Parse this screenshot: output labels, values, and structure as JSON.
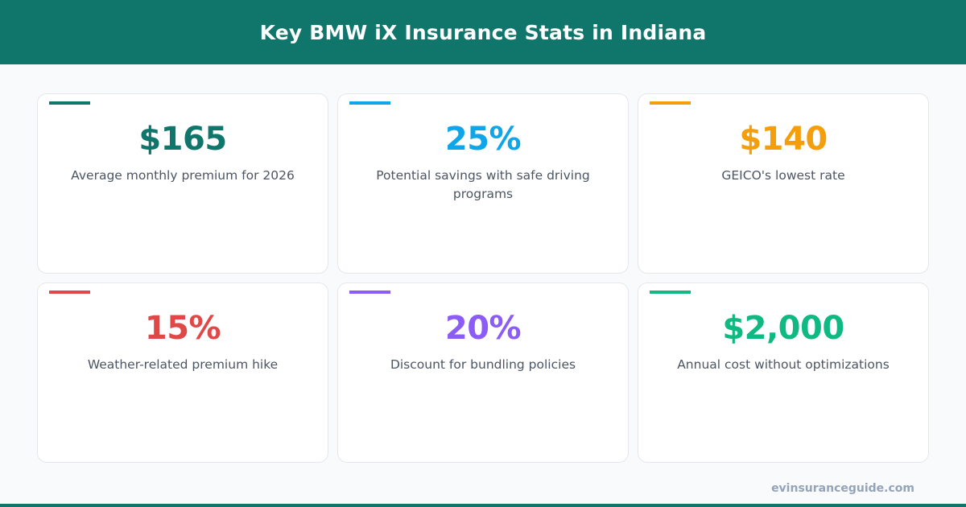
{
  "title": "Key BMW iX Insurance Stats in Indiana",
  "stats": [
    {
      "value": "$165",
      "label": "Average monthly premium for 2026",
      "color": "#10766c"
    },
    {
      "value": "25%",
      "label": "Potential savings with safe driving programs",
      "color": "#0ea5e9"
    },
    {
      "value": "$140",
      "label": "GEICO's lowest rate",
      "color": "#f59e0b"
    },
    {
      "value": "15%",
      "label": "Weather-related premium hike",
      "color": "#e04848"
    },
    {
      "value": "20%",
      "label": "Discount for bundling policies",
      "color": "#8b5cf6"
    },
    {
      "value": "$2,000",
      "label": "Annual cost without optimizations",
      "color": "#10b981"
    }
  ],
  "footer": {
    "site": "evinsuranceguide.com"
  }
}
